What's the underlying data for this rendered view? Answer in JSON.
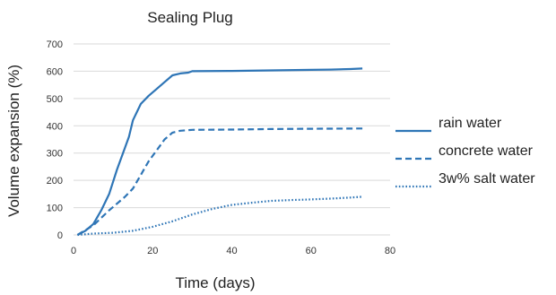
{
  "chart_data": {
    "type": "line",
    "title": "Sealing Plug",
    "xlabel": "Time (days)",
    "ylabel": "Volume expansion (%)",
    "xlim": [
      0,
      80
    ],
    "ylim": [
      0,
      700
    ],
    "xticks": [
      0,
      20,
      40,
      60,
      80
    ],
    "yticks": [
      0,
      100,
      200,
      300,
      400,
      500,
      600,
      700
    ],
    "grid": "horizontal",
    "legend_position": "right",
    "series": [
      {
        "name": "rain water",
        "style": "solid",
        "color": "#2e75b6",
        "points": [
          [
            1,
            0
          ],
          [
            3,
            15
          ],
          [
            5,
            40
          ],
          [
            7,
            90
          ],
          [
            9,
            150
          ],
          [
            11,
            240
          ],
          [
            13,
            320
          ],
          [
            14,
            360
          ],
          [
            15,
            420
          ],
          [
            17,
            480
          ],
          [
            19,
            510
          ],
          [
            21,
            535
          ],
          [
            23,
            560
          ],
          [
            25,
            585
          ],
          [
            27,
            592
          ],
          [
            29,
            595
          ],
          [
            30,
            600
          ],
          [
            40,
            601
          ],
          [
            50,
            603
          ],
          [
            60,
            605
          ],
          [
            65,
            606
          ],
          [
            70,
            608
          ],
          [
            73,
            610
          ]
        ]
      },
      {
        "name": "concrete water",
        "style": "dashed",
        "color": "#2e75b6",
        "points": [
          [
            1,
            0
          ],
          [
            5,
            35
          ],
          [
            9,
            90
          ],
          [
            13,
            140
          ],
          [
            15,
            170
          ],
          [
            17,
            220
          ],
          [
            19,
            270
          ],
          [
            21,
            310
          ],
          [
            23,
            350
          ],
          [
            25,
            375
          ],
          [
            27,
            382
          ],
          [
            30,
            385
          ],
          [
            40,
            386
          ],
          [
            50,
            388
          ],
          [
            60,
            389
          ],
          [
            73,
            390
          ]
        ]
      },
      {
        "name": "3w% salt water",
        "style": "dotted",
        "color": "#2e75b6",
        "points": [
          [
            1,
            0
          ],
          [
            5,
            5
          ],
          [
            10,
            8
          ],
          [
            15,
            15
          ],
          [
            20,
            30
          ],
          [
            25,
            50
          ],
          [
            30,
            75
          ],
          [
            35,
            95
          ],
          [
            40,
            110
          ],
          [
            45,
            118
          ],
          [
            50,
            125
          ],
          [
            55,
            128
          ],
          [
            60,
            130
          ],
          [
            65,
            133
          ],
          [
            70,
            137
          ],
          [
            73,
            140
          ]
        ]
      }
    ]
  }
}
